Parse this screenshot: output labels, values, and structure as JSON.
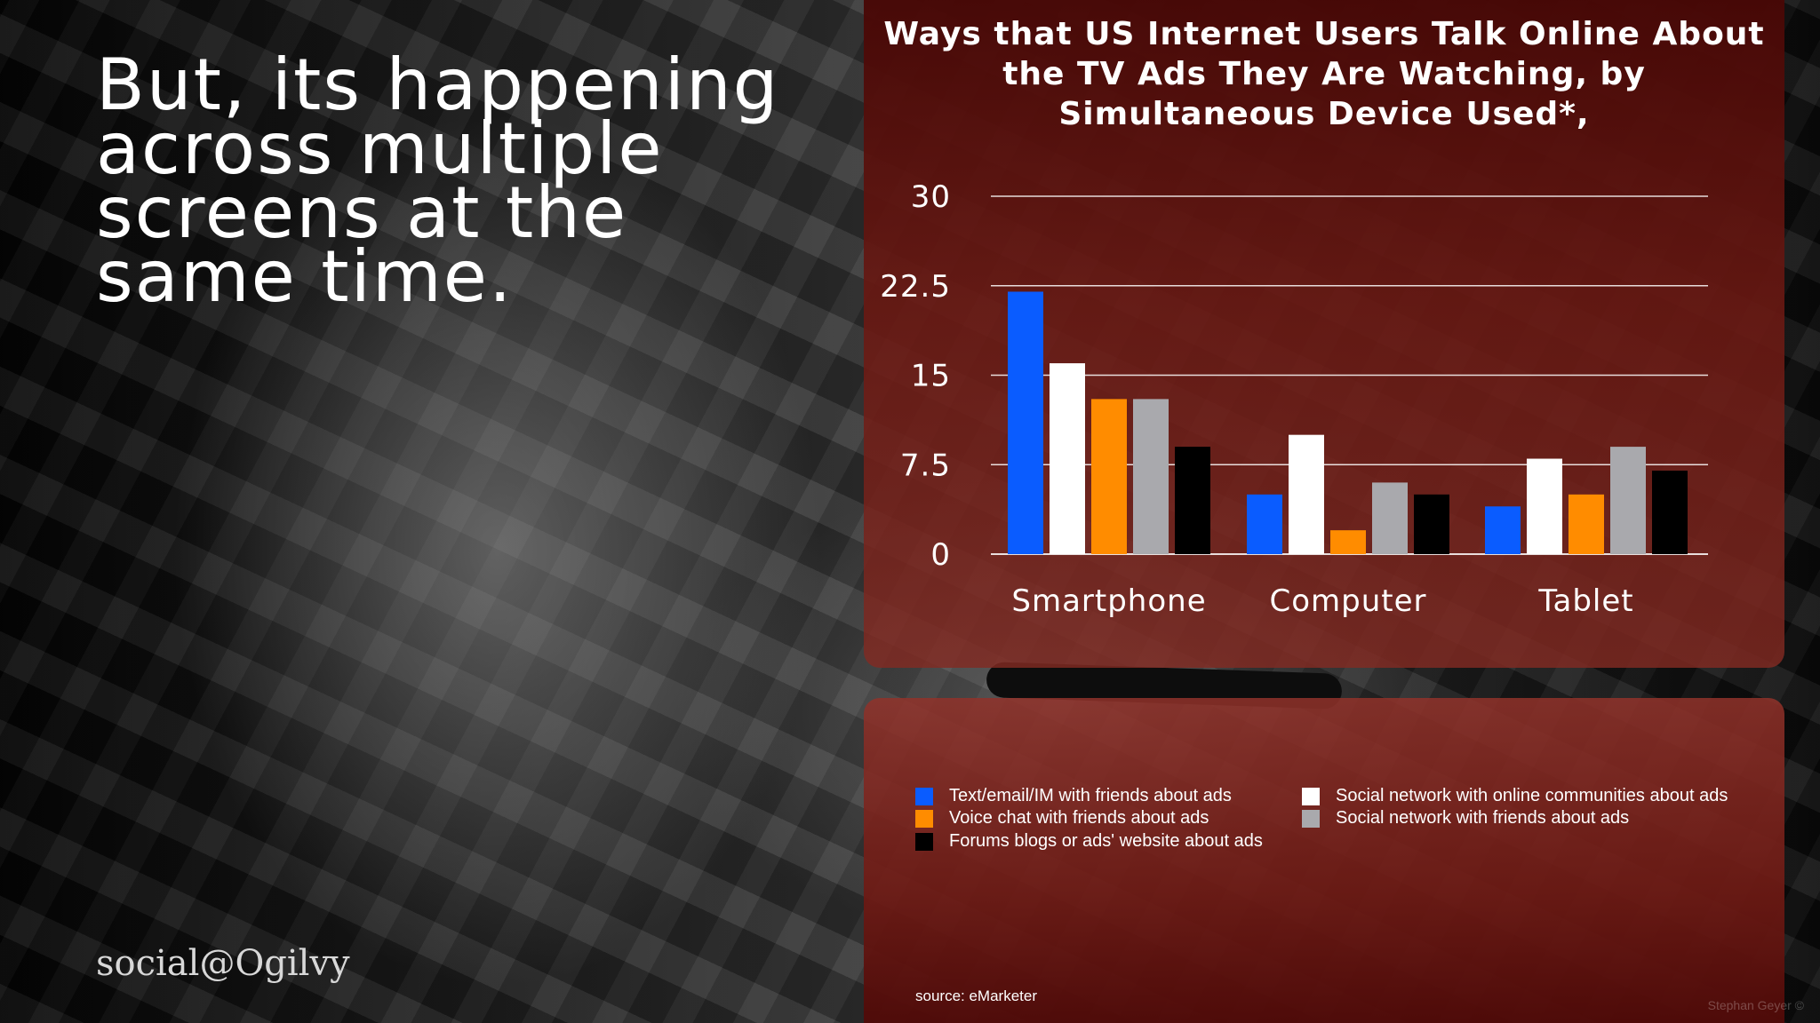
{
  "slide": {
    "headline": "But, its happening across multiple screens at the same time.",
    "brand": "social@Ogilvy",
    "source": "source: eMarketer",
    "credit": "Stephan Geyer ©"
  },
  "chart_data": {
    "type": "bar",
    "title": "Ways that US Internet Users Talk Online About the TV Ads They Are Watching, by Simultaneous Device Used*,",
    "categories": [
      "Smartphone",
      "Computer",
      "Tablet"
    ],
    "series": [
      {
        "name": "Text/email/IM with friends about ads",
        "color": "#0a5cff",
        "values": [
          22,
          5,
          4
        ]
      },
      {
        "name": "Social network with online communities about ads",
        "color": "#ffffff",
        "values": [
          16,
          10,
          8
        ]
      },
      {
        "name": "Voice chat with friends about ads",
        "color": "#ff8c00",
        "values": [
          13,
          2,
          5
        ]
      },
      {
        "name": "Social network with friends about ads",
        "color": "#a9a9ad",
        "values": [
          13,
          6,
          9
        ]
      },
      {
        "name": "Forums blogs or ads' website about ads",
        "color": "#000000",
        "values": [
          9,
          5,
          7
        ]
      }
    ],
    "yticks": [
      "0",
      "7.5",
      "15",
      "22.5",
      "30"
    ],
    "ylim": [
      0,
      30
    ],
    "grid": true,
    "legend_position": "bottom"
  }
}
